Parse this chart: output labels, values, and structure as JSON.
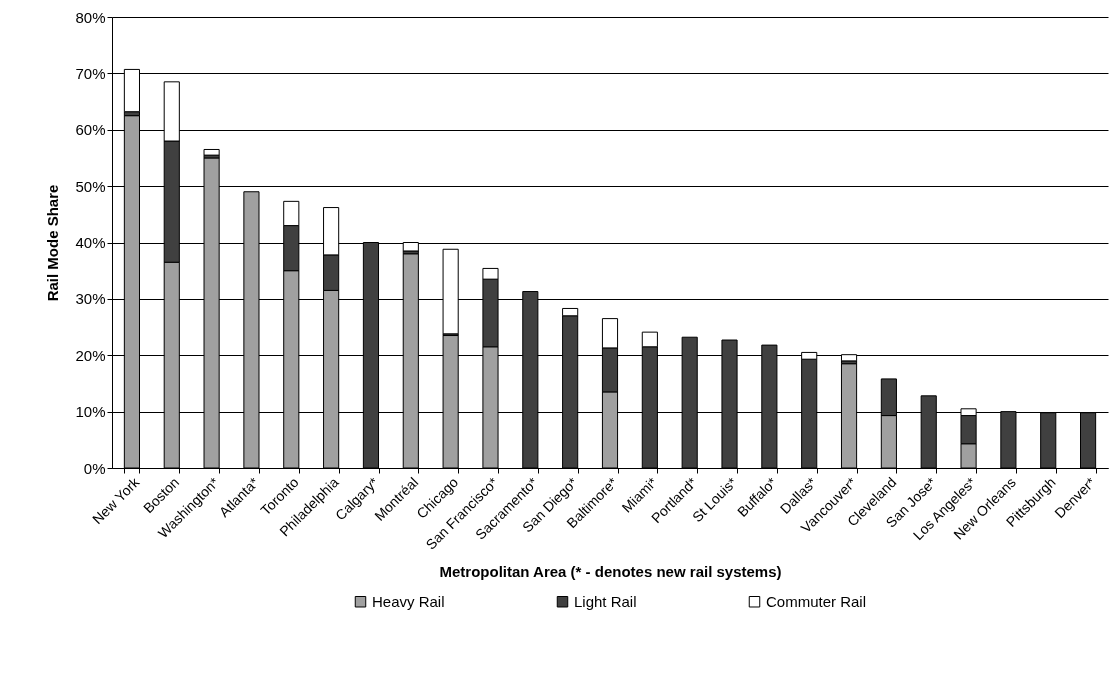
{
  "chart_data": {
    "type": "bar",
    "stacked": true,
    "xlabel": "Metropolitan Area  (* - denotes new rail systems)",
    "ylabel": "Rail Mode Share",
    "categories": [
      "New York",
      "Boston",
      "Washington*",
      "Atlanta*",
      "Toronto",
      "Philadelphia",
      "Calgary*",
      "Montréal",
      "Chicago",
      "San Francisco*",
      "Sacramento*",
      "San Diego*",
      "Baltimore*",
      "Miami*",
      "Portland*",
      "St Louis*",
      "Buffalo*",
      "Dallas*",
      "Vancouver*",
      "Cleveland",
      "San Jose*",
      "Los Angeles*",
      "New Orleans",
      "Pittsburgh",
      "Denver*"
    ],
    "series": [
      {
        "name": "Heavy Rail",
        "color": "#a0a0a0",
        "values": [
          62.5,
          36.5,
          55,
          49,
          35,
          31.5,
          null,
          38,
          23.5,
          21.5,
          null,
          null,
          13.5,
          null,
          null,
          null,
          null,
          null,
          18.5,
          9.3,
          null,
          4.3,
          null,
          null,
          null
        ]
      },
      {
        "name": "Light Rail",
        "color": "#404040",
        "values": [
          0.7,
          21.5,
          0.5,
          null,
          8,
          6.3,
          40,
          0.5,
          0.3,
          12,
          31.3,
          27,
          7.8,
          21.5,
          23.2,
          22.7,
          21.8,
          19.3,
          0.5,
          6.5,
          12.8,
          5,
          10,
          9.8,
          9.8
        ]
      },
      {
        "name": "Commuter Rail",
        "color": "#ffffff",
        "values": [
          7.5,
          10.5,
          1,
          null,
          4.3,
          8.4,
          null,
          1.5,
          15,
          1.9,
          null,
          1.3,
          5.2,
          2.6,
          null,
          null,
          null,
          1.2,
          1.1,
          null,
          null,
          1.2,
          null,
          null,
          null
        ]
      }
    ],
    "ylim": [
      0,
      80
    ],
    "yticks": [
      {
        "value": 0,
        "label": "0%"
      },
      {
        "value": 10,
        "label": "10%"
      },
      {
        "value": 20,
        "label": "20%"
      },
      {
        "value": 30,
        "label": "30%"
      },
      {
        "value": 40,
        "label": "40%"
      },
      {
        "value": 50,
        "label": "50%"
      },
      {
        "value": 60,
        "label": "60%"
      },
      {
        "value": 70,
        "label": "70%"
      },
      {
        "value": 80,
        "label": "80%"
      }
    ],
    "grid": "y",
    "legend": "bottom"
  }
}
